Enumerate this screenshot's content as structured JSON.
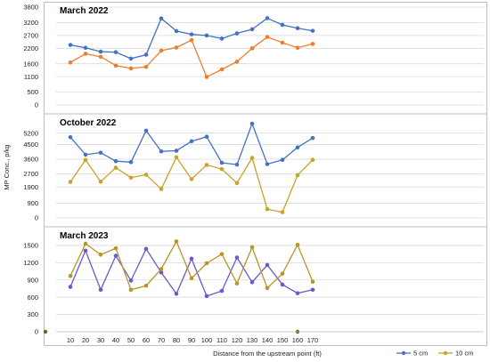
{
  "chart_data": {
    "type": "line",
    "ylabel": "MP Conc., p/kg",
    "xlabel": "Distance from the upstream point (ft)",
    "x": [
      10,
      20,
      30,
      40,
      50,
      60,
      70,
      80,
      90,
      100,
      110,
      120,
      130,
      140,
      150,
      160,
      170
    ],
    "panels": [
      {
        "title": "March 2022",
        "ylim": [
          0,
          3800
        ],
        "yticks": [
          0,
          500,
          1100,
          1600,
          2200,
          2700,
          3200,
          3800
        ],
        "series": [
          {
            "name": "5 cm",
            "color": "#4472C4",
            "values": [
              2330,
              2220,
              2070,
              2050,
              1800,
              1950,
              3360,
              2870,
              2740,
              2700,
              2580,
              2780,
              2940,
              3370,
              3110,
              2980,
              2880
            ]
          },
          {
            "name": "10 cm",
            "color": "#ED7D31",
            "values": [
              1650,
              1990,
              1870,
              1530,
              1420,
              1480,
              2110,
              2230,
              2520,
              1090,
              1380,
              1680,
              2200,
              2640,
              2420,
              2220,
              2370
            ]
          }
        ]
      },
      {
        "title": "October 2022",
        "ylim": [
          0,
          6000
        ],
        "yticks": [
          0,
          900,
          1900,
          2700,
          3600,
          4500,
          5200
        ],
        "series": [
          {
            "name": "5 cm",
            "color": "#4472C4",
            "values": [
              4950,
              3880,
              4000,
              3480,
              3420,
              5350,
              4080,
              4120,
              4700,
              4980,
              3380,
              3270,
              5780,
              3300,
              3560,
              4320,
              4900
            ]
          },
          {
            "name": "10 cm",
            "color": "#C9A227",
            "values": [
              2210,
              3560,
              2220,
              3080,
              2470,
              2650,
              1770,
              3720,
              2380,
              3250,
              2990,
              2140,
              3680,
              540,
              350,
              2620,
              3560
            ]
          }
        ]
      },
      {
        "title": "March 2023",
        "ylim": [
          0,
          1700
        ],
        "yticks": [
          0,
          300,
          600,
          900,
          1200,
          1500
        ],
        "series": [
          {
            "name": "5 cm",
            "color": "#6A5ACD",
            "values": [
              780,
              1410,
              730,
              1320,
              890,
              1440,
              1030,
              660,
              1270,
              620,
              710,
              1290,
              860,
              1160,
              820,
              670,
              730
            ]
          },
          {
            "name": "10 cm",
            "color": "#B8952A",
            "values": [
              970,
              1530,
              1340,
              1450,
              730,
              800,
              1090,
              1570,
              930,
              1190,
              1350,
              840,
              1470,
              760,
              1010,
              1510,
              870
            ]
          }
        ]
      }
    ],
    "legend": [
      {
        "name": "5 cm",
        "color": "#4472C4"
      },
      {
        "name": "10 cm",
        "color": "#C9A227"
      }
    ],
    "legend_position": "bottom-right"
  }
}
